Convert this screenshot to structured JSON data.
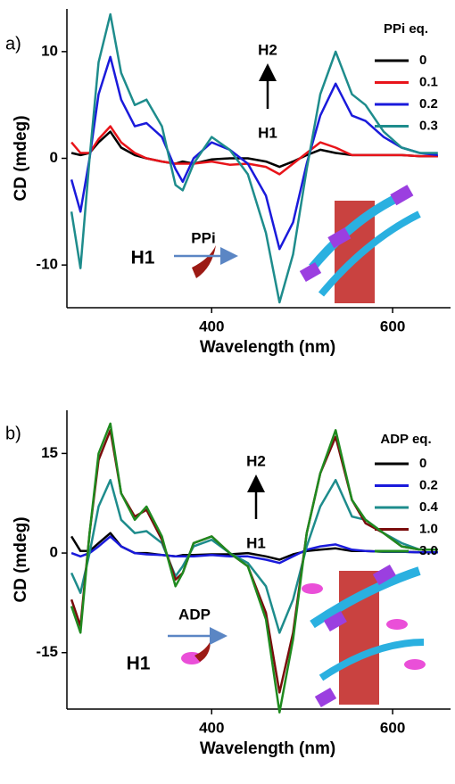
{
  "chart_data": [
    {
      "type": "line",
      "panel_label": "a)",
      "legend_title": "PPi eq.",
      "xlabel": "Wavelength (nm)",
      "ylabel": "CD (mdeg)",
      "xlim": [
        240,
        664
      ],
      "xticks": [
        400,
        600
      ],
      "ylim": [
        -14,
        14
      ],
      "yticks": [
        -10,
        0,
        10
      ],
      "annotations": [
        "H2",
        "H1",
        "H1",
        "PPi"
      ],
      "x": [
        245,
        255,
        265,
        275,
        288,
        300,
        315,
        328,
        345,
        360,
        368,
        380,
        400,
        420,
        440,
        460,
        475,
        490,
        505,
        520,
        537,
        555,
        570,
        590,
        610,
        630,
        650
      ],
      "series": [
        {
          "name": "0",
          "color": "#000000",
          "values": [
            0.5,
            0.3,
            0.5,
            1.5,
            2.5,
            1,
            0.3,
            0,
            -0.3,
            -0.5,
            -0.3,
            -0.5,
            -0.1,
            0,
            0,
            -0.3,
            -0.8,
            -0.3,
            0.3,
            0.8,
            0.5,
            0.3,
            0.3,
            0.3,
            0.3,
            0.2,
            0.2
          ]
        },
        {
          "name": "0.1",
          "color": "#e8141a",
          "values": [
            1.5,
            0.5,
            0.5,
            1.8,
            3,
            1.5,
            0.5,
            0,
            -0.3,
            -0.5,
            -0.5,
            -0.5,
            -0.3,
            -0.6,
            -0.5,
            -0.8,
            -1.5,
            -0.5,
            0.5,
            1.5,
            1,
            0.3,
            0.3,
            0.3,
            0.3,
            0.2,
            0.2
          ]
        },
        {
          "name": "0.2",
          "color": "#1a1adb",
          "values": [
            -2,
            -5,
            0,
            6,
            9.5,
            5.5,
            3,
            3.3,
            2,
            -1,
            -2.2,
            0,
            1.5,
            0.8,
            -0.5,
            -3.5,
            -8.5,
            -6,
            -0.5,
            4,
            7,
            4,
            3.5,
            2,
            1,
            0.5,
            0.3
          ]
        },
        {
          "name": "0.3",
          "color": "#1e8c8c",
          "values": [
            -5,
            -10.3,
            0,
            9,
            13.5,
            8,
            5,
            5.5,
            3,
            -2.5,
            -3,
            -0.5,
            2,
            0.8,
            -1.5,
            -7,
            -13.5,
            -9,
            -1,
            6,
            10,
            6,
            5,
            2.5,
            1,
            0.5,
            0.5
          ]
        }
      ]
    },
    {
      "type": "line",
      "panel_label": "b)",
      "legend_title": "ADP eq.",
      "xlabel": "Wavelength (nm)",
      "ylabel": "CD (mdeg)",
      "xlim": [
        240,
        664
      ],
      "xticks": [
        400,
        600
      ],
      "ylim": [
        -23.5,
        21.5
      ],
      "yticks": [
        -15,
        0,
        15
      ],
      "annotations": [
        "H2",
        "H1",
        "H1",
        "ADP"
      ],
      "x": [
        245,
        255,
        265,
        275,
        288,
        300,
        315,
        328,
        345,
        360,
        368,
        380,
        400,
        420,
        440,
        460,
        475,
        490,
        505,
        520,
        537,
        555,
        570,
        590,
        610,
        630,
        650
      ],
      "series": [
        {
          "name": "0",
          "color": "#000000",
          "values": [
            2.5,
            0.3,
            0.3,
            1.5,
            3,
            1,
            0,
            0,
            -0.3,
            -0.5,
            -0.3,
            -0.3,
            -0.2,
            -0.2,
            0,
            -0.5,
            -1,
            -0.2,
            0.3,
            0.5,
            0.7,
            0.3,
            0.3,
            0.2,
            0.2,
            0.1,
            0.1
          ]
        },
        {
          "name": "0.2",
          "color": "#1a1adb",
          "values": [
            0,
            -0.5,
            0,
            1,
            2.5,
            1,
            0,
            -0.2,
            -0.3,
            -0.5,
            -0.5,
            -0.5,
            -0.3,
            -0.5,
            -0.5,
            -1,
            -1.5,
            -0.5,
            0.5,
            1,
            1.3,
            0.5,
            0.3,
            0.2,
            0.2,
            0.1,
            0.1
          ]
        },
        {
          "name": "0.4",
          "color": "#1e8c8c",
          "values": [
            -3,
            -6,
            0,
            7,
            11,
            5,
            3,
            3.3,
            1.5,
            -3.5,
            -2,
            1,
            2,
            0,
            -1.5,
            -5,
            -12,
            -7,
            1,
            7,
            11,
            5.5,
            5,
            3,
            1.5,
            0.5,
            0.5
          ]
        },
        {
          "name": "1.0",
          "color": "#7a0c0c",
          "values": [
            -7,
            -11,
            3,
            14,
            18.5,
            9,
            5.5,
            6.5,
            2,
            -4,
            -3,
            1.5,
            2.5,
            0,
            -2,
            -9,
            -21,
            -12,
            3,
            12,
            17.5,
            8,
            4.5,
            3,
            1,
            0.5,
            0.5
          ]
        },
        {
          "name": "3.0",
          "color": "#1f8a1f",
          "values": [
            -8,
            -12,
            3,
            15,
            19.5,
            9,
            5,
            7,
            2.5,
            -5,
            -3,
            1.5,
            2.5,
            0,
            -2,
            -10,
            -24,
            -13,
            3,
            12,
            18.5,
            8,
            5,
            3,
            1,
            0.5,
            0.5
          ]
        }
      ]
    }
  ]
}
